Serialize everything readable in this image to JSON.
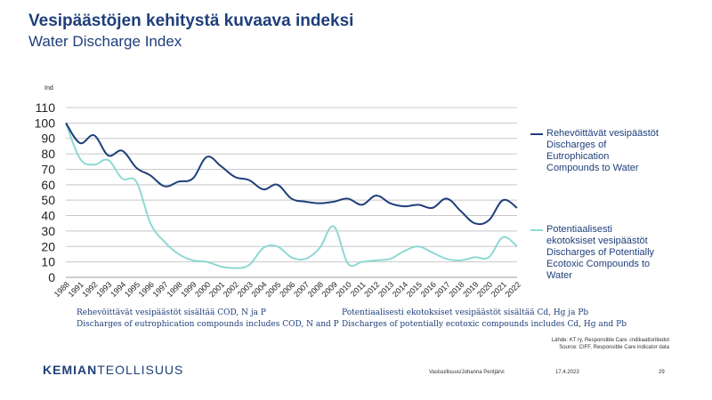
{
  "header": {
    "title": "Vesipäästöjen kehitystä kuvaava indeksi",
    "subtitle": "Water Discharge Index"
  },
  "chart_data": {
    "type": "line",
    "ylabel": "Ind",
    "ylim": [
      0,
      110
    ],
    "yticks": [
      0,
      10,
      20,
      30,
      40,
      50,
      60,
      70,
      80,
      90,
      100,
      110
    ],
    "grid": true,
    "legend_position": "right",
    "categories": [
      "1988",
      "1991",
      "1992",
      "1993",
      "1994",
      "1995",
      "1996",
      "1997",
      "1998",
      "1999",
      "2000",
      "2001",
      "2002",
      "2003",
      "2004",
      "2005",
      "2006",
      "2007",
      "2008",
      "2009",
      "2010",
      "2011",
      "2012",
      "2013",
      "2014",
      "2015",
      "2016",
      "2017",
      "2018",
      "2019",
      "2020",
      "2021",
      "2022"
    ],
    "series": [
      {
        "name": "Rehevöittävät vesipäästöt Discharges of Eutrophication Compounds to Water",
        "color": "#1f3f7a",
        "values": [
          100,
          87,
          92,
          79,
          82,
          71,
          66,
          59,
          62,
          64,
          78,
          72,
          65,
          63,
          57,
          60,
          51,
          49,
          48,
          49,
          51,
          47,
          53,
          48,
          46,
          47,
          45,
          51,
          43,
          35,
          37,
          50,
          45
        ]
      },
      {
        "name": "Potentiaalisesti ekotoksiset vesipäästöt Discharges of Potentially Ecotoxic Compounds to Water",
        "color": "#8fd8d2",
        "values": [
          100,
          77,
          73,
          76,
          64,
          62,
          35,
          23,
          15,
          11,
          10,
          7,
          6,
          8,
          19,
          20,
          13,
          12,
          19,
          33,
          9,
          10,
          11,
          12,
          17,
          20,
          16,
          12,
          11,
          13,
          13,
          26,
          20
        ]
      }
    ]
  },
  "legend": {
    "eutro_lines": [
      "Rehevöittävät vesipäästöt",
      "Discharges of",
      "Eutrophication",
      "Compounds to Water"
    ],
    "ecotox_lines": [
      "Potentiaalisesti",
      "ekotoksiset vesipäästöt",
      "Discharges of Potentially",
      "Ecotoxic Compounds to",
      "Water"
    ]
  },
  "notes": {
    "eutro_fi": "Rehevöittävät vesipäästöt sisältää COD, N ja P",
    "eutro_en": "Discharges of eutrophication compounds includes COD, N and P",
    "ecotox_fi": "Potentiaalisesti ekotoksiset vesipäästöt sisältää Cd, Hg ja Pb",
    "ecotox_en": "Discharges of potentially ecotoxic compounds includes Cd, Hg and Pb"
  },
  "source": {
    "line1": "Lähde: KT ry, Responsible Care -indikaattoritiedot",
    "line2": "Source: CIFF, Responsible Care indicator data"
  },
  "footer": {
    "logo_bold": "KEMIAN",
    "logo_rest": "TEOLLISUUS",
    "author": "Vastuullisuus/Johanna Pentjärvi",
    "date": "17.4.2023",
    "page": "29"
  }
}
